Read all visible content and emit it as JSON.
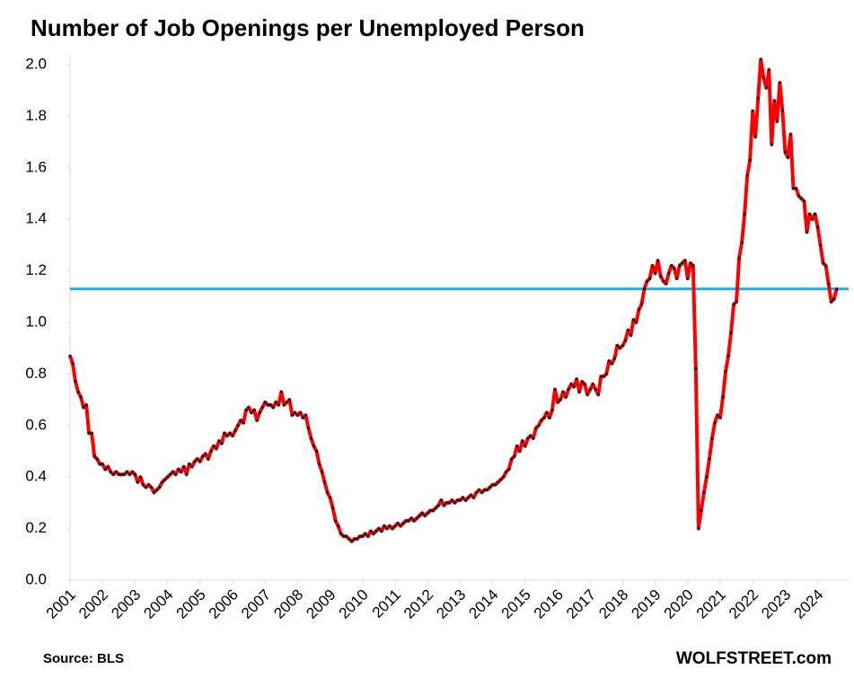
{
  "chart_data": {
    "type": "line",
    "title": "Number of Job Openings per Unemployed Person",
    "source": "Source: BLS",
    "watermark": "WOLFSTREET.com",
    "categories": [
      "2001",
      null,
      null,
      null,
      null,
      null,
      null,
      null,
      null,
      null,
      null,
      null,
      "2002",
      null,
      null,
      null,
      null,
      null,
      null,
      null,
      null,
      null,
      null,
      null,
      "2003",
      null,
      null,
      null,
      null,
      null,
      null,
      null,
      null,
      null,
      null,
      null,
      "2004",
      null,
      null,
      null,
      null,
      null,
      null,
      null,
      null,
      null,
      null,
      null,
      "2005",
      null,
      null,
      null,
      null,
      null,
      null,
      null,
      null,
      null,
      null,
      null,
      "2006",
      null,
      null,
      null,
      null,
      null,
      null,
      null,
      null,
      null,
      null,
      null,
      "2007",
      null,
      null,
      null,
      null,
      null,
      null,
      null,
      null,
      null,
      null,
      null,
      "2008",
      null,
      null,
      null,
      null,
      null,
      null,
      null,
      null,
      null,
      null,
      null,
      "2009",
      null,
      null,
      null,
      null,
      null,
      null,
      null,
      null,
      null,
      null,
      null,
      "2010",
      null,
      null,
      null,
      null,
      null,
      null,
      null,
      null,
      null,
      null,
      null,
      "2011",
      null,
      null,
      null,
      null,
      null,
      null,
      null,
      null,
      null,
      null,
      null,
      "2012",
      null,
      null,
      null,
      null,
      null,
      null,
      null,
      null,
      null,
      null,
      null,
      "2013",
      null,
      null,
      null,
      null,
      null,
      null,
      null,
      null,
      null,
      null,
      null,
      "2014",
      null,
      null,
      null,
      null,
      null,
      null,
      null,
      null,
      null,
      null,
      null,
      "2015",
      null,
      null,
      null,
      null,
      null,
      null,
      null,
      null,
      null,
      null,
      null,
      "2016",
      null,
      null,
      null,
      null,
      null,
      null,
      null,
      null,
      null,
      null,
      null,
      "2017",
      null,
      null,
      null,
      null,
      null,
      null,
      null,
      null,
      null,
      null,
      null,
      "2018",
      null,
      null,
      null,
      null,
      null,
      null,
      null,
      null,
      null,
      null,
      null,
      "2019",
      null,
      null,
      null,
      null,
      null,
      null,
      null,
      null,
      null,
      null,
      null,
      "2020",
      null,
      null,
      null,
      null,
      null,
      null,
      null,
      null,
      null,
      null,
      null,
      "2021",
      null,
      null,
      null,
      null,
      null,
      null,
      null,
      null,
      null,
      null,
      null,
      "2022",
      null,
      null,
      null,
      null,
      null,
      null,
      null,
      null,
      null,
      null,
      null,
      "2023",
      null,
      null,
      null,
      null,
      null,
      null,
      null,
      null,
      null,
      null,
      null,
      "2024",
      null,
      null,
      null,
      null,
      null,
      null,
      null
    ],
    "values": [
      0.87,
      0.84,
      0.77,
      0.73,
      0.71,
      0.67,
      0.68,
      0.57,
      0.57,
      0.48,
      0.47,
      0.45,
      0.45,
      0.43,
      0.44,
      0.42,
      0.41,
      0.42,
      0.41,
      0.41,
      0.41,
      0.42,
      0.41,
      0.42,
      0.41,
      0.38,
      0.4,
      0.37,
      0.36,
      0.37,
      0.36,
      0.34,
      0.35,
      0.36,
      0.38,
      0.39,
      0.4,
      0.41,
      0.42,
      0.41,
      0.43,
      0.42,
      0.44,
      0.41,
      0.45,
      0.44,
      0.46,
      0.47,
      0.46,
      0.48,
      0.49,
      0.47,
      0.5,
      0.52,
      0.51,
      0.54,
      0.53,
      0.57,
      0.56,
      0.57,
      0.56,
      0.58,
      0.6,
      0.62,
      0.61,
      0.66,
      0.67,
      0.65,
      0.66,
      0.62,
      0.65,
      0.67,
      0.69,
      0.68,
      0.68,
      0.67,
      0.69,
      0.68,
      0.73,
      0.68,
      0.69,
      0.7,
      0.64,
      0.65,
      0.64,
      0.65,
      0.63,
      0.64,
      0.59,
      0.55,
      0.52,
      0.5,
      0.45,
      0.42,
      0.38,
      0.34,
      0.32,
      0.28,
      0.23,
      0.21,
      0.18,
      0.17,
      0.17,
      0.16,
      0.15,
      0.16,
      0.16,
      0.17,
      0.17,
      0.18,
      0.17,
      0.19,
      0.18,
      0.19,
      0.2,
      0.19,
      0.21,
      0.2,
      0.21,
      0.2,
      0.21,
      0.22,
      0.21,
      0.22,
      0.23,
      0.23,
      0.24,
      0.23,
      0.24,
      0.25,
      0.26,
      0.25,
      0.26,
      0.27,
      0.27,
      0.28,
      0.29,
      0.31,
      0.29,
      0.3,
      0.3,
      0.31,
      0.3,
      0.31,
      0.31,
      0.32,
      0.31,
      0.32,
      0.33,
      0.32,
      0.34,
      0.35,
      0.34,
      0.35,
      0.35,
      0.36,
      0.37,
      0.37,
      0.38,
      0.39,
      0.4,
      0.42,
      0.43,
      0.47,
      0.48,
      0.52,
      0.5,
      0.54,
      0.52,
      0.55,
      0.56,
      0.55,
      0.59,
      0.6,
      0.62,
      0.63,
      0.65,
      0.63,
      0.66,
      0.74,
      0.69,
      0.7,
      0.73,
      0.71,
      0.74,
      0.76,
      0.75,
      0.78,
      0.73,
      0.77,
      0.76,
      0.72,
      0.74,
      0.76,
      0.74,
      0.72,
      0.79,
      0.79,
      0.8,
      0.85,
      0.84,
      0.86,
      0.91,
      0.9,
      0.91,
      0.93,
      0.97,
      0.95,
      1.01,
      1.0,
      1.05,
      1.07,
      1.13,
      1.16,
      1.17,
      1.22,
      1.19,
      1.24,
      1.18,
      1.16,
      1.15,
      1.19,
      1.22,
      1.21,
      1.17,
      1.22,
      1.23,
      1.24,
      1.17,
      1.23,
      1.22,
      0.82,
      0.2,
      0.27,
      0.34,
      0.4,
      0.47,
      0.55,
      0.61,
      0.64,
      0.63,
      0.71,
      0.81,
      0.87,
      0.96,
      1.07,
      1.08,
      1.25,
      1.31,
      1.42,
      1.57,
      1.63,
      1.82,
      1.72,
      1.87,
      2.02,
      1.95,
      1.91,
      1.98,
      1.69,
      1.86,
      1.78,
      1.93,
      1.82,
      1.66,
      1.64,
      1.73,
      1.52,
      1.52,
      1.49,
      1.48,
      1.47,
      1.35,
      1.42,
      1.4,
      1.42,
      1.37,
      1.3,
      1.23,
      1.22,
      1.15,
      1.08,
      1.09,
      1.13
    ],
    "color": "#ff0000",
    "marker_color": "#1a1a1a",
    "reference_line": {
      "value": 1.13,
      "color": "#1ab0e6"
    },
    "ylim": [
      0,
      2.1
    ],
    "yticks": [
      {
        "value": 0,
        "label": "0.0"
      },
      0.2,
      0.4,
      0.6,
      0.8,
      {
        "value": 1,
        "label": "1.0"
      },
      1.2,
      1.4,
      1.6,
      1.8,
      {
        "value": 2,
        "label": "2.0"
      }
    ],
    "grid": false
  }
}
